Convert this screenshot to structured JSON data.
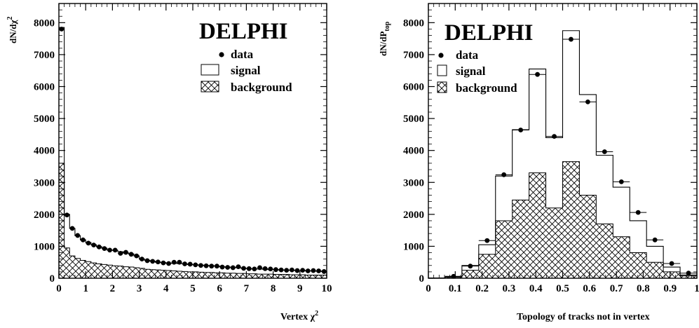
{
  "chart_data": [
    {
      "type": "histogram",
      "brand": "DELPHI",
      "ylabel": "dN/dχ",
      "ylabel_sup": "2",
      "xlabel": "Vertex χ",
      "xlabel_sup": "2",
      "xlim": [
        0,
        10
      ],
      "ylim": [
        0,
        8600
      ],
      "x_ticks": [
        0,
        1,
        2,
        3,
        4,
        5,
        6,
        7,
        8,
        9,
        10
      ],
      "y_ticks": [
        0,
        1000,
        2000,
        3000,
        4000,
        5000,
        6000,
        7000,
        8000
      ],
      "legend": {
        "data": "data",
        "signal": "signal",
        "background": "background"
      },
      "bin_edges": [
        0,
        0.2,
        0.4,
        0.6,
        0.8,
        1,
        1.2,
        1.4,
        1.6,
        1.8,
        2,
        2.2,
        2.4,
        2.6,
        2.8,
        3,
        3.2,
        3.4,
        3.6,
        3.8,
        4,
        4.2,
        4.4,
        4.6,
        4.8,
        5,
        5.2,
        5.4,
        5.6,
        5.8,
        6,
        6.2,
        6.4,
        6.6,
        6.8,
        7,
        7.2,
        7.4,
        7.6,
        7.8,
        8,
        8.2,
        8.4,
        8.6,
        8.8,
        9,
        9.2,
        9.4,
        9.6,
        9.8,
        10
      ],
      "total_mc": [
        7850,
        2000,
        1560,
        1330,
        1200,
        1120,
        1050,
        990,
        940,
        880,
        870,
        830,
        790,
        760,
        700,
        600,
        560,
        530,
        500,
        490,
        470,
        470,
        460,
        450,
        430,
        420,
        410,
        400,
        390,
        380,
        360,
        350,
        340,
        330,
        310,
        300,
        290,
        290,
        280,
        270,
        270,
        260,
        250,
        250,
        240,
        240,
        230,
        230,
        220,
        210
      ],
      "background": [
        3600,
        950,
        700,
        620,
        560,
        520,
        480,
        450,
        430,
        410,
        390,
        380,
        360,
        350,
        330,
        310,
        280,
        270,
        260,
        250,
        240,
        230,
        220,
        210,
        200,
        200,
        190,
        180,
        180,
        170,
        170,
        160,
        160,
        150,
        150,
        140,
        140,
        130,
        130,
        130,
        120,
        120,
        120,
        110,
        110,
        110,
        100,
        100,
        100,
        100
      ],
      "data_x": [
        0.1,
        0.3,
        0.5,
        0.7,
        0.9,
        1.1,
        1.3,
        1.5,
        1.7,
        1.9,
        2.1,
        2.3,
        2.5,
        2.7,
        2.9,
        3.1,
        3.3,
        3.5,
        3.7,
        3.9,
        4.1,
        4.3,
        4.5,
        4.7,
        4.9,
        5.1,
        5.3,
        5.5,
        5.7,
        5.9,
        6.1,
        6.3,
        6.5,
        6.7,
        6.9,
        7.1,
        7.3,
        7.5,
        7.7,
        7.9,
        8.1,
        8.3,
        8.5,
        8.7,
        8.9,
        9.1,
        9.3,
        9.5,
        9.7,
        9.9
      ],
      "data_y": [
        7800,
        1980,
        1560,
        1340,
        1200,
        1100,
        1040,
        980,
        930,
        880,
        880,
        780,
        810,
        750,
        700,
        600,
        550,
        530,
        510,
        480,
        460,
        500,
        500,
        450,
        440,
        420,
        400,
        390,
        380,
        380,
        350,
        340,
        330,
        360,
        310,
        300,
        290,
        330,
        300,
        290,
        270,
        260,
        250,
        260,
        240,
        250,
        230,
        240,
        230,
        210
      ]
    },
    {
      "type": "histogram",
      "brand": "DELPHI",
      "ylabel": "dN/dP",
      "ylabel_sub": "top",
      "xlabel": "Topology of tracks not in vertex",
      "xlim": [
        0,
        1
      ],
      "ylim": [
        0,
        8600
      ],
      "x_ticks": [
        0,
        0.1,
        0.2,
        0.3,
        0.4,
        0.5,
        0.6,
        0.7,
        0.8,
        0.9,
        1
      ],
      "x_tick_labels": [
        "0",
        "0.1",
        "0.2",
        "0.3",
        "0.4",
        "0.5",
        "0.6",
        "0.7",
        "0.8",
        "0.9",
        "1"
      ],
      "y_ticks": [
        0,
        1000,
        2000,
        3000,
        4000,
        5000,
        6000,
        7000,
        8000
      ],
      "legend": {
        "data": "data",
        "signal": "signal",
        "background": "background"
      },
      "bin_edges": [
        0,
        0.0625,
        0.125,
        0.1875,
        0.25,
        0.3125,
        0.375,
        0.4375,
        0.5,
        0.5625,
        0.625,
        0.6875,
        0.75,
        0.8125,
        0.875,
        0.9375,
        1
      ],
      "total_mc": [
        10,
        50,
        400,
        1050,
        3200,
        4650,
        6550,
        4400,
        7750,
        5750,
        3850,
        2850,
        1800,
        1000,
        350,
        100
      ],
      "background": [
        5,
        30,
        250,
        750,
        1800,
        2450,
        3300,
        2200,
        3650,
        2600,
        1700,
        1300,
        800,
        500,
        200,
        70
      ],
      "data_x": [
        0.0312,
        0.0938,
        0.1562,
        0.2188,
        0.2812,
        0.3438,
        0.4062,
        0.4688,
        0.5312,
        0.5938,
        0.6562,
        0.7188,
        0.7812,
        0.8438,
        0.9062,
        0.9688
      ],
      "data_y": [
        0,
        60,
        380,
        1180,
        3240,
        4640,
        6380,
        4440,
        7480,
        5520,
        3960,
        3020,
        2060,
        1200,
        460,
        160
      ]
    }
  ]
}
